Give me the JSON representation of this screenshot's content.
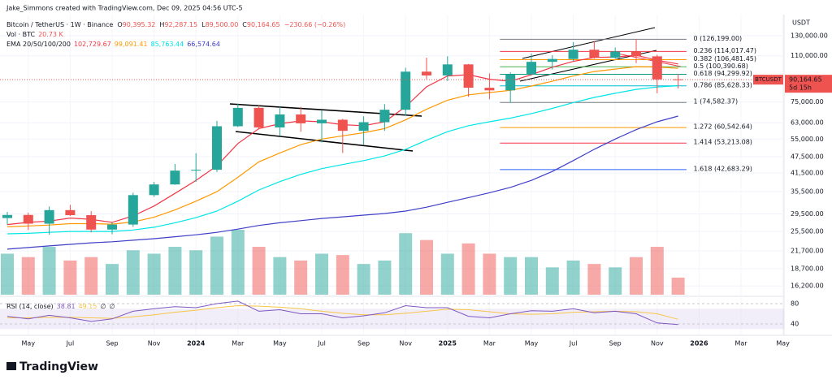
{
  "header": {
    "credit": "Jake_Simmons created with TradingView.com, Dec 09, 2025 04:56 UTC-5",
    "logo": "TradingView"
  },
  "chart_data": [
    {
      "type": "candlestick",
      "title": "Bitcoin / TetherUS · 1W · Binance",
      "ohlc_legend": [
        {
          "key": "O",
          "text": "90,395.32"
        },
        {
          "key": "H",
          "text": "92,287.15"
        },
        {
          "key": "L",
          "text": "89,500.00"
        },
        {
          "key": "C",
          "text": "90,164.65"
        },
        {
          "key": "",
          "text": "−230.66 (−0.26%)"
        }
      ],
      "volume_legend": {
        "label": "Vol · BTC",
        "text": "20.73 K"
      },
      "ema_title": "EMA 20/50/100/200",
      "currency": "USDT",
      "symbol": "BTCUSDT",
      "last_price": {
        "value": 90164.65,
        "label": "90,164.65"
      },
      "countdown": "5d 15h",
      "up_color": "#26a69a",
      "down_color": "#ef5350",
      "log": true,
      "grid": true,
      "categories": [
        null,
        "May",
        null,
        "Jul",
        null,
        "Sep",
        null,
        "Nov",
        null,
        "2024",
        null,
        "Mar",
        null,
        "May",
        null,
        "Jul",
        null,
        "Sep",
        null,
        "Nov",
        null,
        "2025",
        null,
        "Mar",
        null,
        "May",
        null,
        "Jul",
        null,
        "Sep",
        null,
        "Nov",
        null,
        "2026",
        null,
        "Mar",
        null,
        "May"
      ],
      "open": [
        28500,
        29250,
        27200,
        30450,
        29200,
        25900,
        27000,
        34500,
        37700,
        42300,
        42600,
        61200,
        71300,
        60600,
        67500,
        62700,
        64600,
        58900,
        63300,
        70200,
        96400,
        93400,
        102400,
        84300,
        82500,
        94200,
        104600,
        107100,
        115700,
        108200,
        114000,
        109500,
        90400,
        null,
        null,
        null,
        null,
        null
      ],
      "high": [
        30000,
        29800,
        31400,
        31800,
        30200,
        27500,
        35200,
        38500,
        44700,
        48900,
        64000,
        73800,
        72700,
        71900,
        71900,
        70000,
        65100,
        66500,
        73600,
        99600,
        108300,
        109600,
        102800,
        95000,
        95800,
        112000,
        110500,
        123200,
        124400,
        117900,
        126199,
        111000,
        94600,
        null,
        null,
        null,
        null,
        null
      ],
      "low": [
        27000,
        25800,
        24800,
        29000,
        25300,
        24900,
        26500,
        34000,
        37600,
        38500,
        41800,
        60800,
        59600,
        56500,
        58400,
        53500,
        49000,
        52500,
        58900,
        66800,
        90500,
        89200,
        78200,
        76600,
        74500,
        93400,
        98200,
        105100,
        107300,
        107300,
        103500,
        80500,
        83800,
        null,
        null,
        null,
        null,
        null
      ],
      "close": [
        29250,
        27200,
        30450,
        29200,
        25900,
        27000,
        34500,
        37700,
        42300,
        42600,
        61200,
        71300,
        60600,
        67500,
        62700,
        64600,
        58900,
        63300,
        70200,
        96400,
        93400,
        102400,
        84300,
        82500,
        94200,
        104600,
        107100,
        115700,
        108200,
        114000,
        109500,
        90400,
        90164.65,
        null,
        null,
        null,
        null,
        null
      ],
      "volume": [
        60,
        55,
        70,
        50,
        55,
        45,
        65,
        60,
        70,
        65,
        85,
        95,
        70,
        55,
        50,
        60,
        58,
        45,
        50,
        90,
        80,
        60,
        75,
        60,
        55,
        55,
        40,
        50,
        45,
        40,
        55,
        70,
        25,
        null,
        null,
        null,
        null,
        null
      ],
      "series": [
        {
          "color": "#f23645",
          "last_label": "102,729.67",
          "values": [
            27000,
            27500,
            27800,
            28500,
            28200,
            27500,
            29000,
            31500,
            35000,
            39000,
            44000,
            53000,
            60000,
            62500,
            64000,
            63500,
            62000,
            61500,
            63500,
            72000,
            85000,
            93000,
            94000,
            90500,
            89000,
            94000,
            100000,
            105000,
            108500,
            109000,
            110500,
            106000,
            102729.67,
            null,
            null,
            null,
            null,
            null
          ]
        },
        {
          "color": "#ff9800",
          "last_label": "99,091.41",
          "values": [
            26500,
            26700,
            26900,
            27200,
            27200,
            27100,
            27600,
            28700,
            30500,
            32800,
            35500,
            40000,
            45500,
            49000,
            52500,
            55000,
            56500,
            58000,
            60000,
            64500,
            70500,
            76000,
            79500,
            81000,
            82500,
            85500,
            89000,
            93000,
            96500,
            98500,
            100500,
            100200,
            99091.41,
            null,
            null,
            null,
            null,
            null
          ]
        },
        {
          "color": "#00e5e5",
          "last_label": "85,763.44",
          "values": [
            25000,
            25100,
            25300,
            25500,
            25500,
            25500,
            25800,
            26400,
            27400,
            28600,
            30200,
            32800,
            36000,
            38600,
            41000,
            43000,
            44500,
            46000,
            47800,
            50500,
            54500,
            58500,
            61500,
            63500,
            65500,
            68000,
            71000,
            74500,
            77800,
            80500,
            83200,
            84800,
            85763.44,
            null,
            null,
            null,
            null,
            null
          ]
        },
        {
          "color": "#3f3fc8",
          "last_label": "66,574.64",
          "values": [
            22000,
            22300,
            22600,
            22900,
            23200,
            23400,
            23700,
            24000,
            24400,
            24800,
            25300,
            26000,
            26800,
            27400,
            27900,
            28400,
            28800,
            29200,
            29600,
            30200,
            31200,
            32500,
            33800,
            35200,
            36800,
            39000,
            42000,
            46000,
            50500,
            55000,
            59500,
            63500,
            66574.64,
            null,
            null,
            null,
            null,
            null
          ]
        }
      ],
      "fib_levels": [
        {
          "value": 126199,
          "label": "0 (126,199.00)",
          "color": "#787b86"
        },
        {
          "value": 114017.47,
          "label": "0.236 (114,017.47)",
          "color": "#f23645"
        },
        {
          "value": 106481.45,
          "label": "0.382 (106,481.45)",
          "color": "#ff9800"
        },
        {
          "value": 100390.68,
          "label": "0.5 (100,390.68)",
          "color": "#4caf50"
        },
        {
          "value": 94299.92,
          "label": "0.618 (94,299.92)",
          "color": "#089981"
        },
        {
          "value": 85628.33,
          "label": "0.786 (85,628.33)",
          "color": "#00bcd4"
        },
        {
          "value": 74582.37,
          "label": "1 (74,582.37)",
          "color": "#787b86"
        },
        {
          "value": 60542.64,
          "label": "1.272 (60,542.64)",
          "color": "#ff9800"
        },
        {
          "value": 53213.08,
          "label": "1.414 (53,213.08)",
          "color": "#f23645"
        },
        {
          "value": 42683.29,
          "label": "1.618 (42,683.29)",
          "color": "#2962ff"
        }
      ],
      "ylim": [
        15370,
        138150
      ],
      "yticks": [
        {
          "value": 130000,
          "label": "130,000.00"
        },
        {
          "value": 110000,
          "label": "110,000.00"
        },
        {
          "value": 75000,
          "label": "75,000.00"
        },
        {
          "value": 63000,
          "label": "63,000.00"
        },
        {
          "value": 55000,
          "label": "55,000.00"
        },
        {
          "value": 47500,
          "label": "47,500.00"
        },
        {
          "value": 41500,
          "label": "41,500.00"
        },
        {
          "value": 35500,
          "label": "35,500.00"
        },
        {
          "value": 29500,
          "label": "29,500.00"
        },
        {
          "value": 25500,
          "label": "25,500.00"
        },
        {
          "value": 21700,
          "label": "21,700.00"
        },
        {
          "value": 18700,
          "label": "18,700.00"
        },
        {
          "value": 16200,
          "label": "16,200.00"
        }
      ]
    },
    {
      "type": "line",
      "title": "RSI (14, close)",
      "legend_extra": [
        "∅",
        "∅"
      ],
      "band": [
        30,
        70
      ],
      "band_color": "#7e57c2",
      "series": [
        {
          "color": "#7e57c2",
          "last_label": "38.81",
          "values": [
            55,
            50,
            57,
            52,
            45,
            50,
            65,
            70,
            74,
            72,
            80,
            85,
            65,
            68,
            60,
            60,
            52,
            56,
            62,
            76,
            72,
            72,
            55,
            52,
            60,
            66,
            65,
            70,
            62,
            65,
            60,
            42,
            38.81,
            null,
            null,
            null,
            null,
            null
          ]
        },
        {
          "color": "#f7c548",
          "last_label": "49.15",
          "values": [
            52,
            52,
            53,
            53,
            52,
            51,
            54,
            58,
            63,
            67,
            72,
            76,
            75,
            73,
            70,
            65,
            61,
            58,
            58,
            61,
            65,
            69,
            68,
            64,
            60,
            59,
            60,
            63,
            64,
            65,
            64,
            60,
            49.15,
            null,
            null,
            null,
            null,
            null
          ]
        }
      ],
      "ylim": [
        20,
        90
      ],
      "yticks": [
        40,
        80
      ]
    }
  ]
}
